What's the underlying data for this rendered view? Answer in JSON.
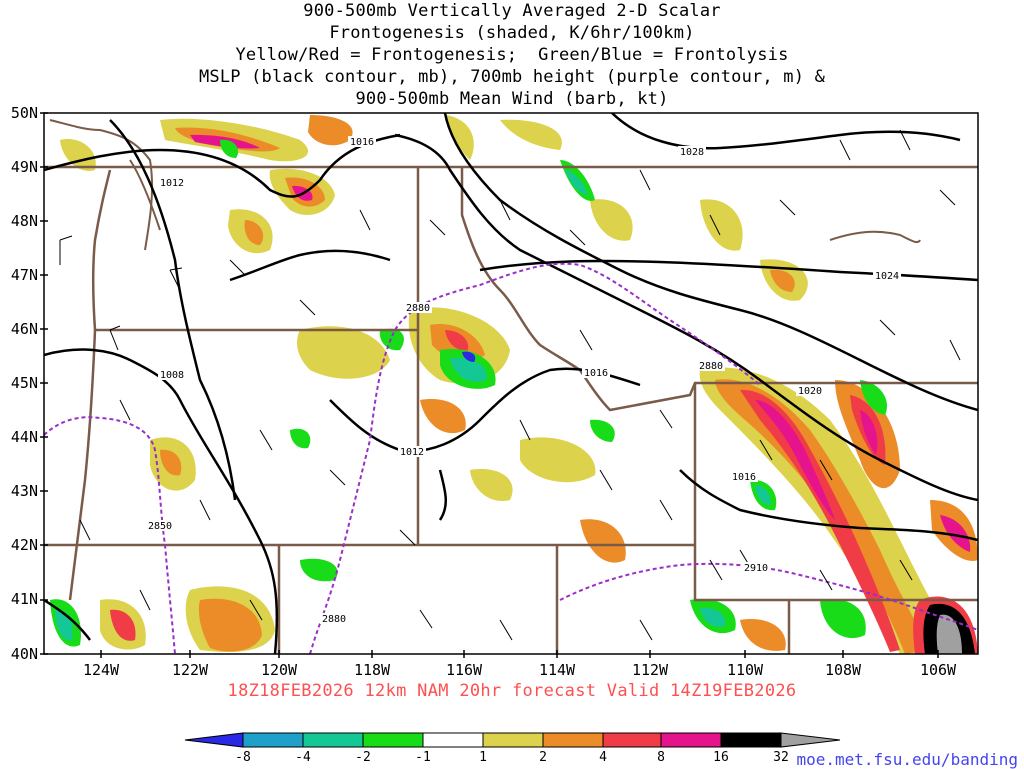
{
  "title": {
    "line1": "900-500mb Vertically Averaged 2-D Scalar",
    "line2": "Frontogenesis (shaded, K/6hr/100km)",
    "line3": "Yellow/Red = Frontogenesis;  Green/Blue = Frontolysis",
    "line4": "MSLP (black contour, mb), 700mb height (purple contour, m) &",
    "line5": "900-500mb Mean Wind (barb, kt)"
  },
  "footer": "18Z18FEB2026 12km NAM 20hr forecast Valid 14Z19FEB2026",
  "credit": "moe.met.fsu.edu/banding",
  "axes": {
    "lat_labels": [
      "50N",
      "49N",
      "48N",
      "47N",
      "46N",
      "45N",
      "44N",
      "43N",
      "42N",
      "41N",
      "40N"
    ],
    "lon_labels": [
      "124W",
      "122W",
      "120W",
      "118W",
      "116W",
      "114W",
      "112W",
      "110W",
      "108W",
      "106W"
    ]
  },
  "colorbar": {
    "labels": [
      "-8",
      "-4",
      "-2",
      "-1",
      "1",
      "2",
      "4",
      "8",
      "16",
      "32"
    ],
    "colors": [
      "#2a2ae6",
      "#1fa0c8",
      "#14c896",
      "#19dc19",
      "#ffffff",
      "#dcd24b",
      "#ec8c28",
      "#f03c46",
      "#e6148c",
      "#000000",
      "#a0a0a0"
    ]
  },
  "contour_labels": {
    "mslp": [
      "1016",
      "1012",
      "1028",
      "1024",
      "1008",
      "1016",
      "1012",
      "1020",
      "1016"
    ],
    "height": [
      "2880",
      "2880",
      "2850",
      "2910",
      "2880"
    ]
  },
  "colors": {
    "state_border": "#7a5a48",
    "mslp": "#000000",
    "height": "#9a2ec8",
    "footer": "#ff4f4f",
    "credit": "#4444ee"
  }
}
